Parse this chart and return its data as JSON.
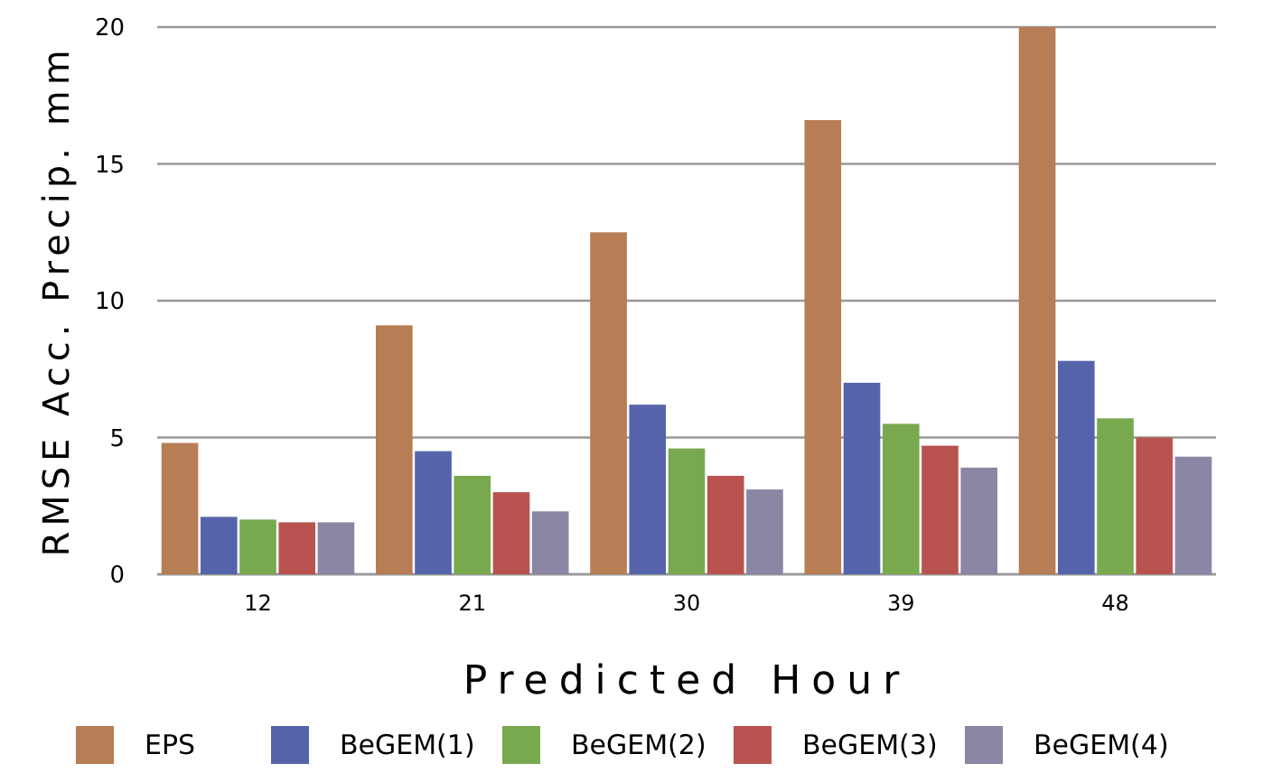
{
  "chart_data": {
    "type": "bar",
    "xlabel": "Predicted Hour",
    "ylabel": "RMSE Acc. Precip. mm",
    "categories": [
      "12",
      "21",
      "30",
      "39",
      "48"
    ],
    "series": [
      {
        "name": "EPS",
        "color": "#b77d54",
        "values": [
          4.8,
          9.1,
          12.5,
          16.6,
          20.0
        ]
      },
      {
        "name": "BeGEM(1)",
        "color": "#5564aa",
        "values": [
          2.1,
          4.5,
          6.2,
          7.0,
          7.8
        ]
      },
      {
        "name": "BeGEM(2)",
        "color": "#78a94f",
        "values": [
          2.0,
          3.6,
          4.6,
          5.5,
          5.7
        ]
      },
      {
        "name": "BeGEM(3)",
        "color": "#b85350",
        "values": [
          1.9,
          3.0,
          3.6,
          4.7,
          5.0
        ]
      },
      {
        "name": "BeGEM(4)",
        "color": "#8a86a3",
        "values": [
          1.9,
          2.3,
          3.1,
          3.9,
          4.3
        ]
      }
    ],
    "ylim": [
      0,
      20
    ],
    "yticks": [
      0,
      5,
      10,
      15,
      20
    ],
    "grid": "y",
    "legend": "bottom"
  }
}
